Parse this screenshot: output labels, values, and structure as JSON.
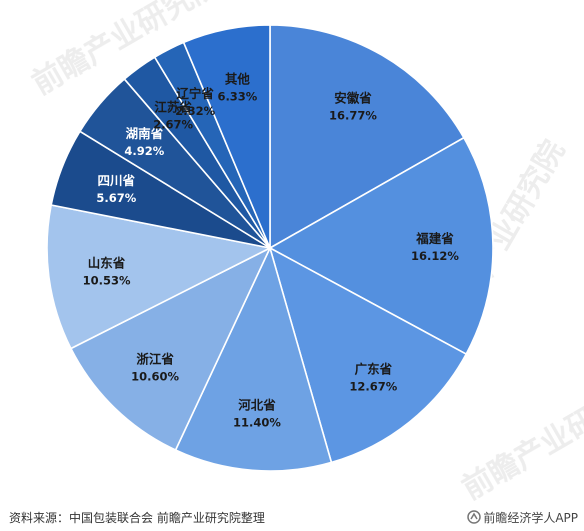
{
  "chart_data": {
    "type": "pie",
    "title": "",
    "categories": [
      "安徽省",
      "福建省",
      "广东省",
      "河北省",
      "浙江省",
      "山东省",
      "四川省",
      "湖南省",
      "江苏省",
      "辽宁省",
      "其他"
    ],
    "values": [
      16.77,
      16.12,
      12.67,
      11.4,
      10.6,
      10.53,
      5.67,
      4.92,
      2.67,
      2.32,
      6.33
    ],
    "value_labels": [
      "16.77%",
      "16.12%",
      "12.67%",
      "11.40%",
      "10.60%",
      "10.53%",
      "5.67%",
      "4.92%",
      "2.67%",
      "2.32%",
      "6.33%"
    ],
    "colors": [
      "#4a85d8",
      "#5490df",
      "#5c96e3",
      "#6ea2e4",
      "#86b0e6",
      "#a3c4ed",
      "#1b4b8d",
      "#205499",
      "#1f58a3",
      "#2565b7",
      "#2c6fcd"
    ],
    "label_colors": [
      "#1a1a1a",
      "#1a1a1a",
      "#1a1a1a",
      "#1a1a1a",
      "#1a1a1a",
      "#1a1a1a",
      "#ffffff",
      "#ffffff",
      "#1a1a1a",
      "#1a1a1a",
      "#1a1a1a"
    ],
    "start_angle_deg": 0,
    "direction": "clockwise",
    "legend": "none"
  },
  "watermark": "前瞻产业研究院",
  "footer": {
    "source": "资料来源：中国包装联合会 前瞻产业研究院整理",
    "brand": "前瞻经济学人APP"
  }
}
